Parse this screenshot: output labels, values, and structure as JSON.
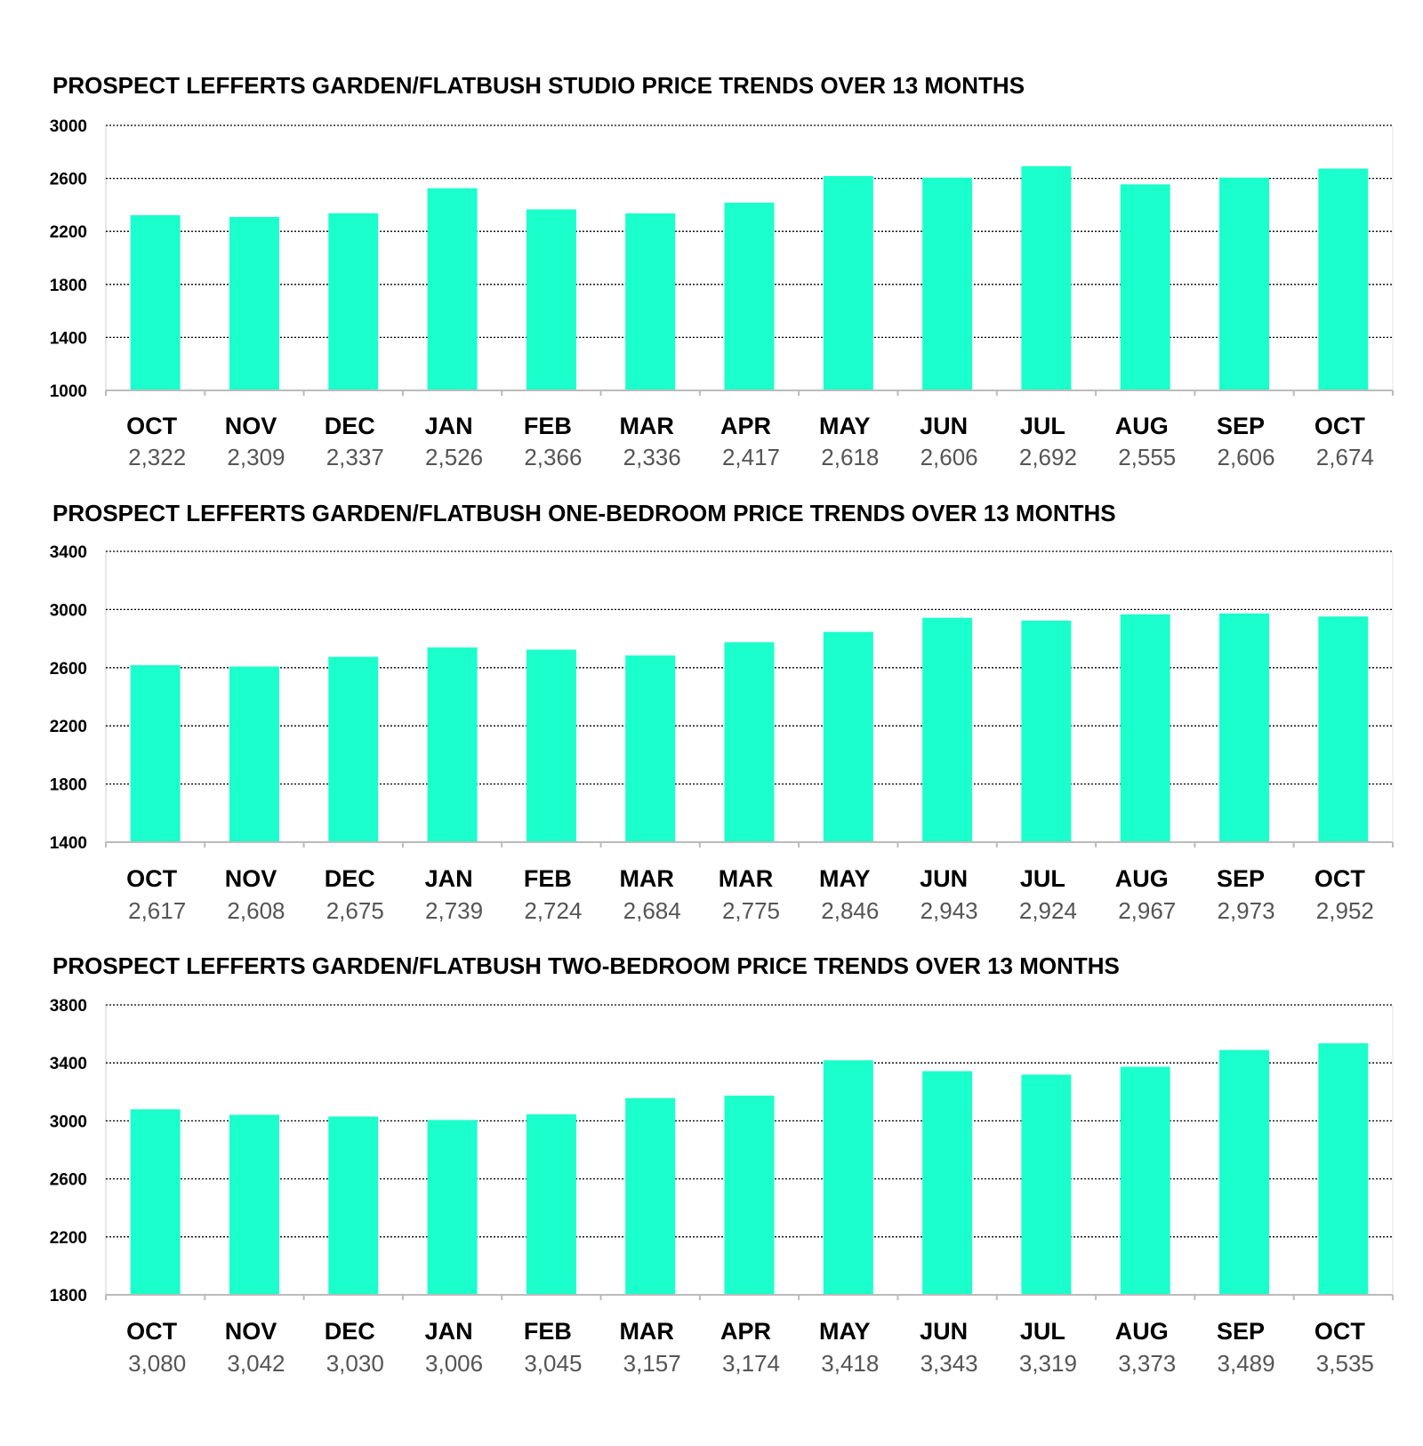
{
  "colors": {
    "bar": "#1affcc",
    "grid": "#000000",
    "axis": "#bbbbbb"
  },
  "chart_data": [
    {
      "type": "bar",
      "title": "PROSPECT LEFFERTS GARDEN/FLATBUSH STUDIO PRICE TRENDS OVER 13 MONTHS",
      "categories": [
        "OCT",
        "NOV",
        "DEC",
        "JAN",
        "FEB",
        "MAR",
        "APR",
        "MAY",
        "JUN",
        "JUL",
        "AUG",
        "SEP",
        "OCT"
      ],
      "values": [
        2322,
        2309,
        2337,
        2526,
        2366,
        2336,
        2417,
        2618,
        2606,
        2692,
        2555,
        2606,
        2674
      ],
      "value_labels": [
        "2,322",
        "2,309",
        "2,337",
        "2,526",
        "2,366",
        "2,336",
        "2,417",
        "2,618",
        "2,606",
        "2,692",
        "2,555",
        "2,606",
        "2,674"
      ],
      "ylim": [
        1000,
        3000
      ],
      "yticks": [
        1000,
        1400,
        1800,
        2200,
        2600,
        3000
      ],
      "grid": true,
      "xlabel": "",
      "ylabel": ""
    },
    {
      "type": "bar",
      "title": "PROSPECT LEFFERTS GARDEN/FLATBUSH ONE-BEDROOM PRICE TRENDS OVER 13 MONTHS",
      "categories": [
        "OCT",
        "NOV",
        "DEC",
        "JAN",
        "FEB",
        "MAR",
        "MAR",
        "MAY",
        "JUN",
        "JUL",
        "AUG",
        "SEP",
        "OCT"
      ],
      "values": [
        2617,
        2608,
        2675,
        2739,
        2724,
        2684,
        2775,
        2846,
        2943,
        2924,
        2967,
        2973,
        2952
      ],
      "value_labels": [
        "2,617",
        "2,608",
        "2,675",
        "2,739",
        "2,724",
        "2,684",
        "2,775",
        "2,846",
        "2,943",
        "2,924",
        "2,967",
        "2,973",
        "2,952"
      ],
      "ylim": [
        1400,
        3400
      ],
      "yticks": [
        1400,
        1800,
        2200,
        2600,
        3000,
        3400
      ],
      "grid": true,
      "xlabel": "",
      "ylabel": ""
    },
    {
      "type": "bar",
      "title": "PROSPECT LEFFERTS GARDEN/FLATBUSH TWO-BEDROOM PRICE TRENDS OVER 13 MONTHS",
      "categories": [
        "OCT",
        "NOV",
        "DEC",
        "JAN",
        "FEB",
        "MAR",
        "APR",
        "MAY",
        "JUN",
        "JUL",
        "AUG",
        "SEP",
        "OCT"
      ],
      "values": [
        3080,
        3042,
        3030,
        3006,
        3045,
        3157,
        3174,
        3418,
        3343,
        3319,
        3373,
        3489,
        3535
      ],
      "value_labels": [
        "3,080",
        "3,042",
        "3,030",
        "3,006",
        "3,045",
        "3,157",
        "3,174",
        "3,418",
        "3,343",
        "3,319",
        "3,373",
        "3,489",
        "3,535"
      ],
      "ylim": [
        1800,
        3800
      ],
      "yticks": [
        1800,
        2200,
        2600,
        3000,
        3400,
        3800
      ],
      "grid": true,
      "xlabel": "",
      "ylabel": ""
    }
  ]
}
